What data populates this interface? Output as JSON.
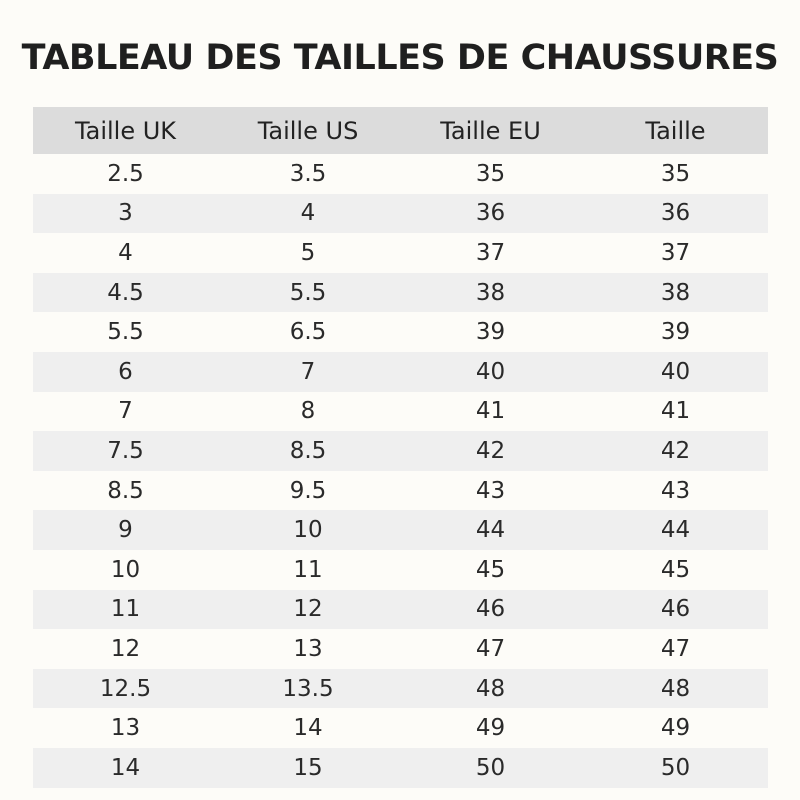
{
  "title": "TABLEAU DES TAILLES DE CHAUSSURES",
  "table": {
    "headers": [
      "Taille UK",
      "Taille US",
      "Taille EU",
      "Taille"
    ],
    "rows": [
      [
        "2.5",
        "3.5",
        "35",
        "35"
      ],
      [
        "3",
        "4",
        "36",
        "36"
      ],
      [
        "4",
        "5",
        "37",
        "37"
      ],
      [
        "4.5",
        "5.5",
        "38",
        "38"
      ],
      [
        "5.5",
        "6.5",
        "39",
        "39"
      ],
      [
        "6",
        "7",
        "40",
        "40"
      ],
      [
        "7",
        "8",
        "41",
        "41"
      ],
      [
        "7.5",
        "8.5",
        "42",
        "42"
      ],
      [
        "8.5",
        "9.5",
        "43",
        "43"
      ],
      [
        "9",
        "10",
        "44",
        "44"
      ],
      [
        "10",
        "11",
        "45",
        "45"
      ],
      [
        "11",
        "12",
        "46",
        "46"
      ],
      [
        "12",
        "13",
        "47",
        "47"
      ],
      [
        "12.5",
        "13.5",
        "48",
        "48"
      ],
      [
        "13",
        "14",
        "49",
        "49"
      ],
      [
        "14",
        "15",
        "50",
        "50"
      ]
    ]
  },
  "colors": {
    "background": "#fdfcf8",
    "header_background": "#dcdcdc",
    "stripe_background": "#efefef",
    "text": "#222222"
  }
}
